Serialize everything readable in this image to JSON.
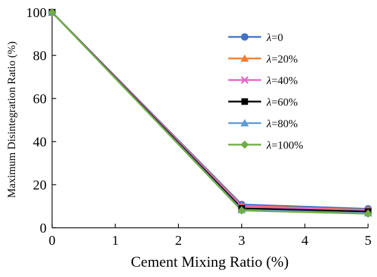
{
  "chart_data": {
    "type": "line",
    "xlabel": "Cement Mixing Ratio (%)",
    "ylabel": "Maximum Disintegration Ratio (%)",
    "xlim": [
      0,
      5
    ],
    "ylim": [
      0,
      100
    ],
    "xticks": [
      "0",
      "1",
      "2",
      "3",
      "4",
      "5"
    ],
    "yticks": [
      "0",
      "20",
      "40",
      "60",
      "80",
      "100"
    ],
    "grid": false,
    "legend_position": "top-right",
    "x": [
      0,
      3,
      5
    ],
    "series": [
      {
        "name_prefix": "λ",
        "name_suffix": "=0",
        "color": "#4472c4",
        "marker": "circle",
        "values": [
          100,
          10.8,
          8.8
        ]
      },
      {
        "name_prefix": "λ",
        "name_suffix": "=20%",
        "color": "#ed7d31",
        "marker": "triangle",
        "values": [
          100,
          10.2,
          8.3
        ]
      },
      {
        "name_prefix": "λ",
        "name_suffix": "=40%",
        "color": "#e661c7",
        "marker": "x",
        "values": [
          100,
          9.8,
          8.0
        ]
      },
      {
        "name_prefix": "λ",
        "name_suffix": "=60%",
        "color": "#000000",
        "marker": "square",
        "values": [
          100,
          9.0,
          7.5
        ]
      },
      {
        "name_prefix": "λ",
        "name_suffix": "=80%",
        "color": "#5b9bd5",
        "marker": "triangle",
        "values": [
          100,
          8.3,
          6.8
        ]
      },
      {
        "name_prefix": "λ",
        "name_suffix": "=100%",
        "color": "#70ad47",
        "marker": "diamond",
        "values": [
          100,
          8.0,
          6.5
        ]
      }
    ]
  }
}
